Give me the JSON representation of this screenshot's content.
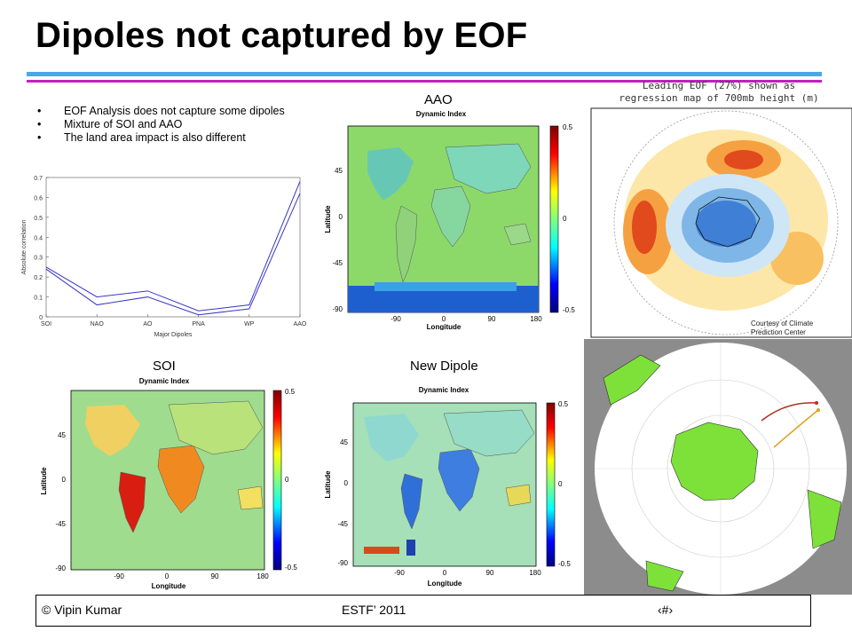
{
  "title": "Dipoles not captured by EOF",
  "colors": {
    "rule_blue": "#4da6e8",
    "rule_purple": "#c020c0",
    "series": "#3535c8"
  },
  "bullets": [
    "EOF Analysis does not capture some dipoles",
    "Mixture of SOI and AAO",
    "The land area impact is also different"
  ],
  "chart_data": {
    "type": "line",
    "categories": [
      "SOI",
      "NAO",
      "AO",
      "PNA",
      "WP",
      "AAO"
    ],
    "xlabel": "Major Dipoles",
    "ylabel": "Absolute correlation",
    "ylim": [
      0,
      0.7
    ],
    "yticks": [
      "0",
      "0.1",
      "0.2",
      "0.3",
      "0.4",
      "0.5",
      "0.6",
      "0.7"
    ],
    "series": [
      {
        "values": [
          0.25,
          0.1,
          0.13,
          0.03,
          0.06,
          0.68
        ]
      },
      {
        "values": [
          0.24,
          0.06,
          0.1,
          0.01,
          0.04,
          0.62
        ]
      }
    ]
  },
  "maps": {
    "aao": {
      "label": "AAO",
      "subtitle": "Dynamic Index"
    },
    "soi": {
      "label": "SOI",
      "subtitle": "Dynamic Index"
    },
    "new": {
      "label": "New Dipole",
      "subtitle": "Dynamic Index"
    },
    "ylabel": "Latitude",
    "xlabel": "Longitude",
    "yticks": [
      "45",
      "0",
      "-45",
      "-90"
    ],
    "xticks": [
      "-90",
      "0",
      "90",
      "180"
    ],
    "cbar": [
      "0.5",
      "0",
      "-0.5"
    ]
  },
  "eof_map": {
    "title_line1": "Leading EOF (27%) shown as",
    "title_line2": "regression map of 700mb height (m)",
    "credit_line1": "Courtesy of  Climate",
    "credit_line2": "Prediction Center"
  },
  "footer": {
    "left": "© Vipin Kumar",
    "center": "ESTF’ 2011",
    "right": "‹#›"
  }
}
